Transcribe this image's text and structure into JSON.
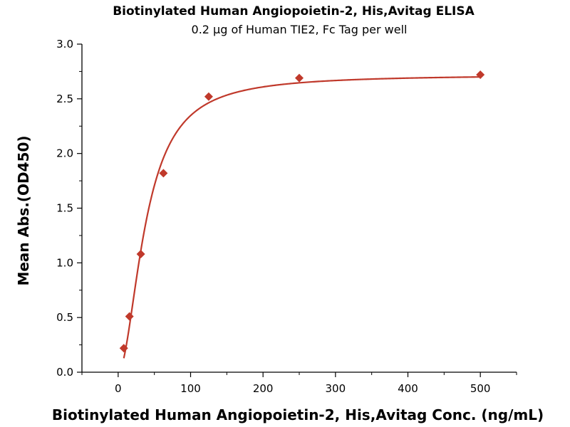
{
  "chart_data": {
    "type": "scatter",
    "title": "Biotinylated Human Angiopoietin-2, His,Avitag ELISA",
    "subtitle": "0.2 μg of Human TIE2, Fc Tag per well",
    "xlabel": "Biotinylated Human Angiopoietin-2, His,Avitag Conc. (ng/mL)",
    "ylabel": "Mean Abs.(OD450)",
    "xlim": [
      -50,
      550
    ],
    "ylim": [
      0,
      3.0
    ],
    "x_ticks": [
      "0",
      "100",
      "200",
      "300",
      "400",
      "500"
    ],
    "y_ticks": [
      "0.0",
      "0.5",
      "1.0",
      "1.5",
      "2.0",
      "2.5",
      "3.0"
    ],
    "grid": false,
    "series": [
      {
        "marker": "diamond",
        "color": "#c0392b",
        "points": [
          {
            "x": 7.8,
            "y": 0.22
          },
          {
            "x": 15.6,
            "y": 0.51
          },
          {
            "x": 31.25,
            "y": 1.08
          },
          {
            "x": 62.5,
            "y": 1.82
          },
          {
            "x": 125,
            "y": 2.52
          },
          {
            "x": 250,
            "y": 2.69
          },
          {
            "x": 500,
            "y": 2.72
          }
        ]
      }
    ],
    "fit_curve": {
      "color": "#c0392b",
      "model": "4PL",
      "bottom": 0,
      "top": 2.72,
      "ec50": 38,
      "hill": 1.9
    }
  }
}
